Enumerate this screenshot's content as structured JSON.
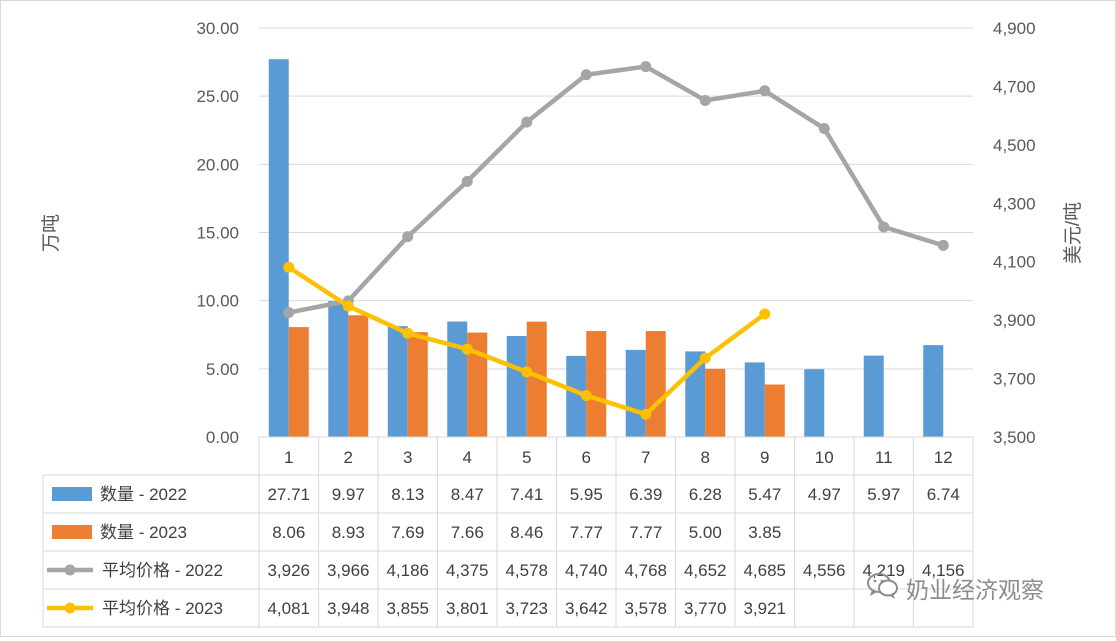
{
  "chart_data": {
    "type": "bar+line",
    "categories": [
      "1",
      "2",
      "3",
      "4",
      "5",
      "6",
      "7",
      "8",
      "9",
      "10",
      "11",
      "12"
    ],
    "y_left": {
      "label": "万吨",
      "lim": [
        0,
        30
      ],
      "ticks": [
        "0.00",
        "5.00",
        "10.00",
        "15.00",
        "20.00",
        "25.00",
        "30.00"
      ]
    },
    "y_right": {
      "label": "美元/吨",
      "lim": [
        3500,
        4900
      ],
      "ticks": [
        "3,500",
        "3,700",
        "3,900",
        "4,100",
        "4,300",
        "4,500",
        "4,700",
        "4,900"
      ]
    },
    "grid": true,
    "bar_series": [
      {
        "name": "数量 - 2022",
        "color": "#5b9bd5",
        "axis": "left",
        "values": [
          27.71,
          9.97,
          8.13,
          8.47,
          7.41,
          5.95,
          6.39,
          6.28,
          5.47,
          4.97,
          5.97,
          6.74
        ],
        "labels": [
          "27.71",
          "9.97",
          "8.13",
          "8.47",
          "7.41",
          "5.95",
          "6.39",
          "6.28",
          "5.47",
          "4.97",
          "5.97",
          "6.74"
        ]
      },
      {
        "name": "数量 - 2023",
        "color": "#ed7d31",
        "axis": "left",
        "values": [
          8.06,
          8.93,
          7.69,
          7.66,
          8.46,
          7.77,
          7.77,
          5.0,
          3.85,
          null,
          null,
          null
        ],
        "labels": [
          "8.06",
          "8.93",
          "7.69",
          "7.66",
          "8.46",
          "7.77",
          "7.77",
          "5.00",
          "3.85",
          "",
          "",
          ""
        ]
      }
    ],
    "line_series": [
      {
        "name": "平均价格 - 2022",
        "color": "#a5a5a5",
        "axis": "right",
        "values": [
          3926,
          3966,
          4186,
          4375,
          4578,
          4740,
          4768,
          4652,
          4685,
          4556,
          4219,
          4156
        ],
        "labels": [
          "3,926",
          "3,966",
          "4,186",
          "4,375",
          "4,578",
          "4,740",
          "4,768",
          "4,652",
          "4,685",
          "4,556",
          "4,219",
          "4,156"
        ]
      },
      {
        "name": "平均价格 - 2023",
        "color": "#ffc000",
        "axis": "right",
        "values": [
          4081,
          3948,
          3855,
          3801,
          3723,
          3642,
          3578,
          3770,
          3921,
          null,
          null,
          null
        ],
        "labels": [
          "4,081",
          "3,948",
          "3,855",
          "3,801",
          "3,723",
          "3,642",
          "3,578",
          "3,770",
          "3,921",
          "",
          "",
          ""
        ]
      }
    ]
  },
  "watermark": {
    "text": "奶业经济观察",
    "icon": "wechat-icon"
  }
}
